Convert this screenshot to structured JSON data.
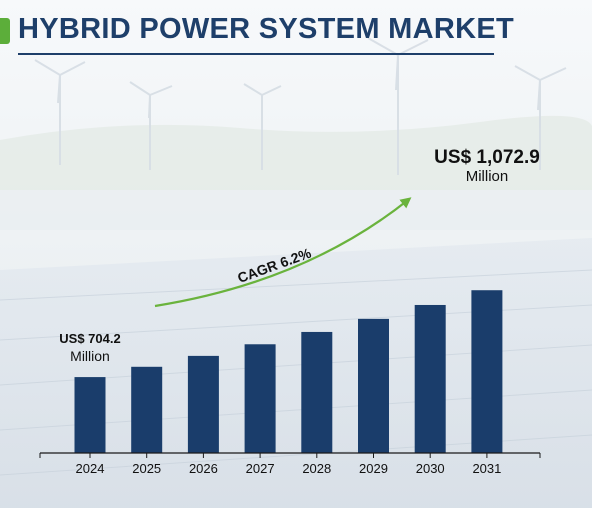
{
  "header": {
    "title": "HYBRID POWER SYSTEM MARKET"
  },
  "colors": {
    "bar": "#1a3d6b",
    "accent": "#5cae3a",
    "title": "#1e3f6a",
    "arrow": "#6ab33d"
  },
  "annotations": {
    "start_value": "US$ 704.2",
    "start_unit": "Million",
    "end_value": "US$ 1,072.9",
    "end_unit": "Million",
    "cagr": "CAGR 6.2%"
  },
  "chart_data": {
    "type": "bar",
    "title": "HYBRID POWER SYSTEM MARKET",
    "categories": [
      "2024",
      "2025",
      "2026",
      "2027",
      "2028",
      "2029",
      "2030",
      "2031"
    ],
    "values": [
      704.2,
      747.9,
      794.2,
      843.5,
      895.8,
      951.3,
      1010.3,
      1072.9
    ],
    "unit": "US$ Million",
    "xlabel": "",
    "ylabel": "",
    "grid": false,
    "legend": "none"
  }
}
